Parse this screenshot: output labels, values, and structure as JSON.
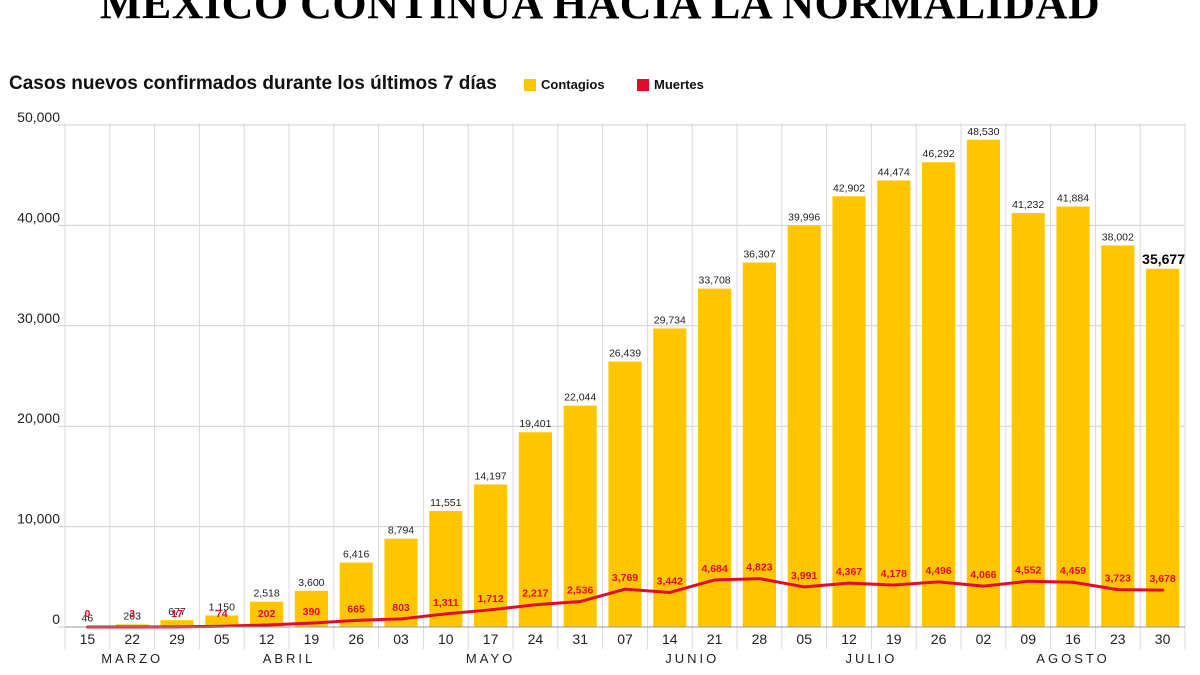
{
  "title": "MÉXICO CONTINÚA HACIA LA NORMALIDAD",
  "subtitle": "Casos nuevos confirmados durante los últimos 7 días",
  "colors": {
    "contagios": "#ffc600",
    "muertes": "#e30b2b",
    "grid": "#cfcfcf"
  },
  "chart_data": {
    "type": "bar",
    "title": "MÉXICO CONTINÚA HACIA LA NORMALIDAD",
    "subtitle": "Casos nuevos confirmados durante los últimos 7 días",
    "categories": [
      "15",
      "22",
      "29",
      "05",
      "12",
      "19",
      "26",
      "03",
      "10",
      "17",
      "24",
      "31",
      "07",
      "14",
      "21",
      "28",
      "05",
      "12",
      "19",
      "26",
      "02",
      "09",
      "16",
      "23",
      "30"
    ],
    "months": [
      {
        "label": "MARZO",
        "from": 0,
        "to": 2
      },
      {
        "label": "ABRIL",
        "from": 3,
        "to": 6
      },
      {
        "label": "MAYO",
        "from": 7,
        "to": 11
      },
      {
        "label": "JUNIO",
        "from": 12,
        "to": 15
      },
      {
        "label": "JULIO",
        "from": 16,
        "to": 19
      },
      {
        "label": "AGOSTO",
        "from": 20,
        "to": 24
      }
    ],
    "series": [
      {
        "name": "Contagios",
        "type": "bar",
        "values": [
          46,
          263,
          677,
          1150,
          2518,
          3600,
          6416,
          8794,
          11551,
          14197,
          19401,
          22044,
          26439,
          29734,
          33708,
          36307,
          39996,
          42902,
          44474,
          46292,
          48530,
          41232,
          41884,
          38002,
          35677
        ],
        "labels": [
          "46",
          "263",
          "677",
          "1,150",
          "2,518",
          "3,600",
          "6,416",
          "8,794",
          "11,551",
          "14,197",
          "19,401",
          "22,044",
          "26,439",
          "29,734",
          "33,708",
          "36,307",
          "39,996",
          "42,902",
          "44,474",
          "46,292",
          "48,530",
          "41,232",
          "41,884",
          "38,002",
          "35,677"
        ]
      },
      {
        "name": "Muertes",
        "type": "line",
        "values": [
          0,
          3,
          17,
          74,
          202,
          390,
          665,
          803,
          1311,
          1712,
          2217,
          2536,
          3769,
          3442,
          4684,
          4823,
          3991,
          4367,
          4178,
          4496,
          4066,
          4552,
          4459,
          3723,
          3678
        ],
        "labels": [
          "0",
          "3",
          "17",
          "74",
          "202",
          "390",
          "665",
          "803",
          "1,311",
          "1,712",
          "2,217",
          "2,536",
          "3,769",
          "3,442",
          "4,684",
          "4,823",
          "3,991",
          "4,367",
          "4,178",
          "4,496",
          "4,066",
          "4,552",
          "4,459",
          "3,723",
          "3,678"
        ]
      }
    ],
    "yticks": [
      0,
      10000,
      20000,
      30000,
      40000,
      50000
    ],
    "ytick_labels": [
      "0",
      "10,000",
      "20,000",
      "30,000",
      "40,000",
      "50,000"
    ],
    "ylim": [
      0,
      50000
    ],
    "grid": true,
    "legend": "top"
  }
}
